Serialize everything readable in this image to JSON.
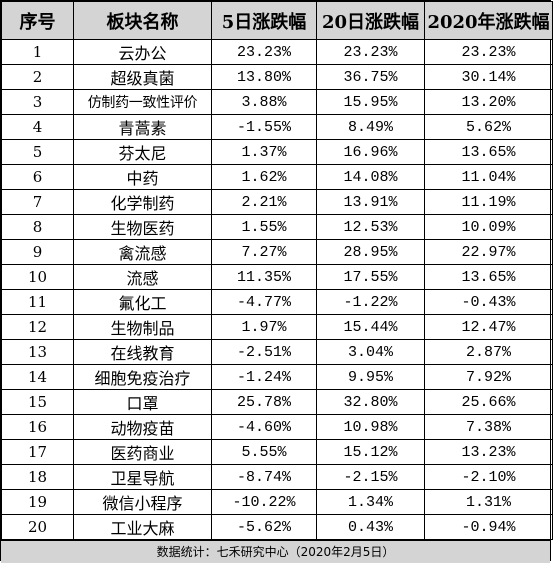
{
  "table": {
    "headers": [
      "序号",
      "板块名称",
      "5日涨跌幅",
      "20日涨跌幅",
      "2020年涨跌幅"
    ],
    "rows": [
      [
        "1",
        "云办公",
        "23.23%",
        "23.23%",
        "23.23%"
      ],
      [
        "2",
        "超级真菌",
        "13.80%",
        "36.75%",
        "30.14%"
      ],
      [
        "3",
        "仿制药一致性评价",
        "3.88%",
        "15.95%",
        "13.20%"
      ],
      [
        "4",
        "青蒿素",
        "-1.55%",
        "8.49%",
        "5.62%"
      ],
      [
        "5",
        "芬太尼",
        "1.37%",
        "16.96%",
        "13.65%"
      ],
      [
        "6",
        "中药",
        "1.62%",
        "14.08%",
        "11.04%"
      ],
      [
        "7",
        "化学制药",
        "2.21%",
        "13.91%",
        "11.19%"
      ],
      [
        "8",
        "生物医药",
        "1.55%",
        "12.53%",
        "10.09%"
      ],
      [
        "9",
        "禽流感",
        "7.27%",
        "28.95%",
        "22.97%"
      ],
      [
        "10",
        "流感",
        "11.35%",
        "17.55%",
        "13.65%"
      ],
      [
        "11",
        "氟化工",
        "-4.77%",
        "-1.22%",
        "-0.43%"
      ],
      [
        "12",
        "生物制品",
        "1.97%",
        "15.44%",
        "12.47%"
      ],
      [
        "13",
        "在线教育",
        "-2.51%",
        "3.04%",
        "2.87%"
      ],
      [
        "14",
        "细胞免疫治疗",
        "-1.24%",
        "9.95%",
        "7.92%"
      ],
      [
        "15",
        "口罩",
        "25.78%",
        "32.80%",
        "25.66%"
      ],
      [
        "16",
        "动物疫苗",
        "-4.60%",
        "10.98%",
        "7.38%"
      ],
      [
        "17",
        "医药商业",
        "5.55%",
        "15.12%",
        "13.23%"
      ],
      [
        "18",
        "卫星导航",
        "-8.74%",
        "-2.15%",
        "-2.10%"
      ],
      [
        "19",
        "微信小程序",
        "-10.22%",
        "1.34%",
        "1.31%"
      ],
      [
        "20",
        "工业大麻",
        "-5.62%",
        "0.43%",
        "-0.94%"
      ]
    ]
  },
  "footer": {
    "text": "数据统计：七禾研究中心（2020年2月5日）"
  }
}
